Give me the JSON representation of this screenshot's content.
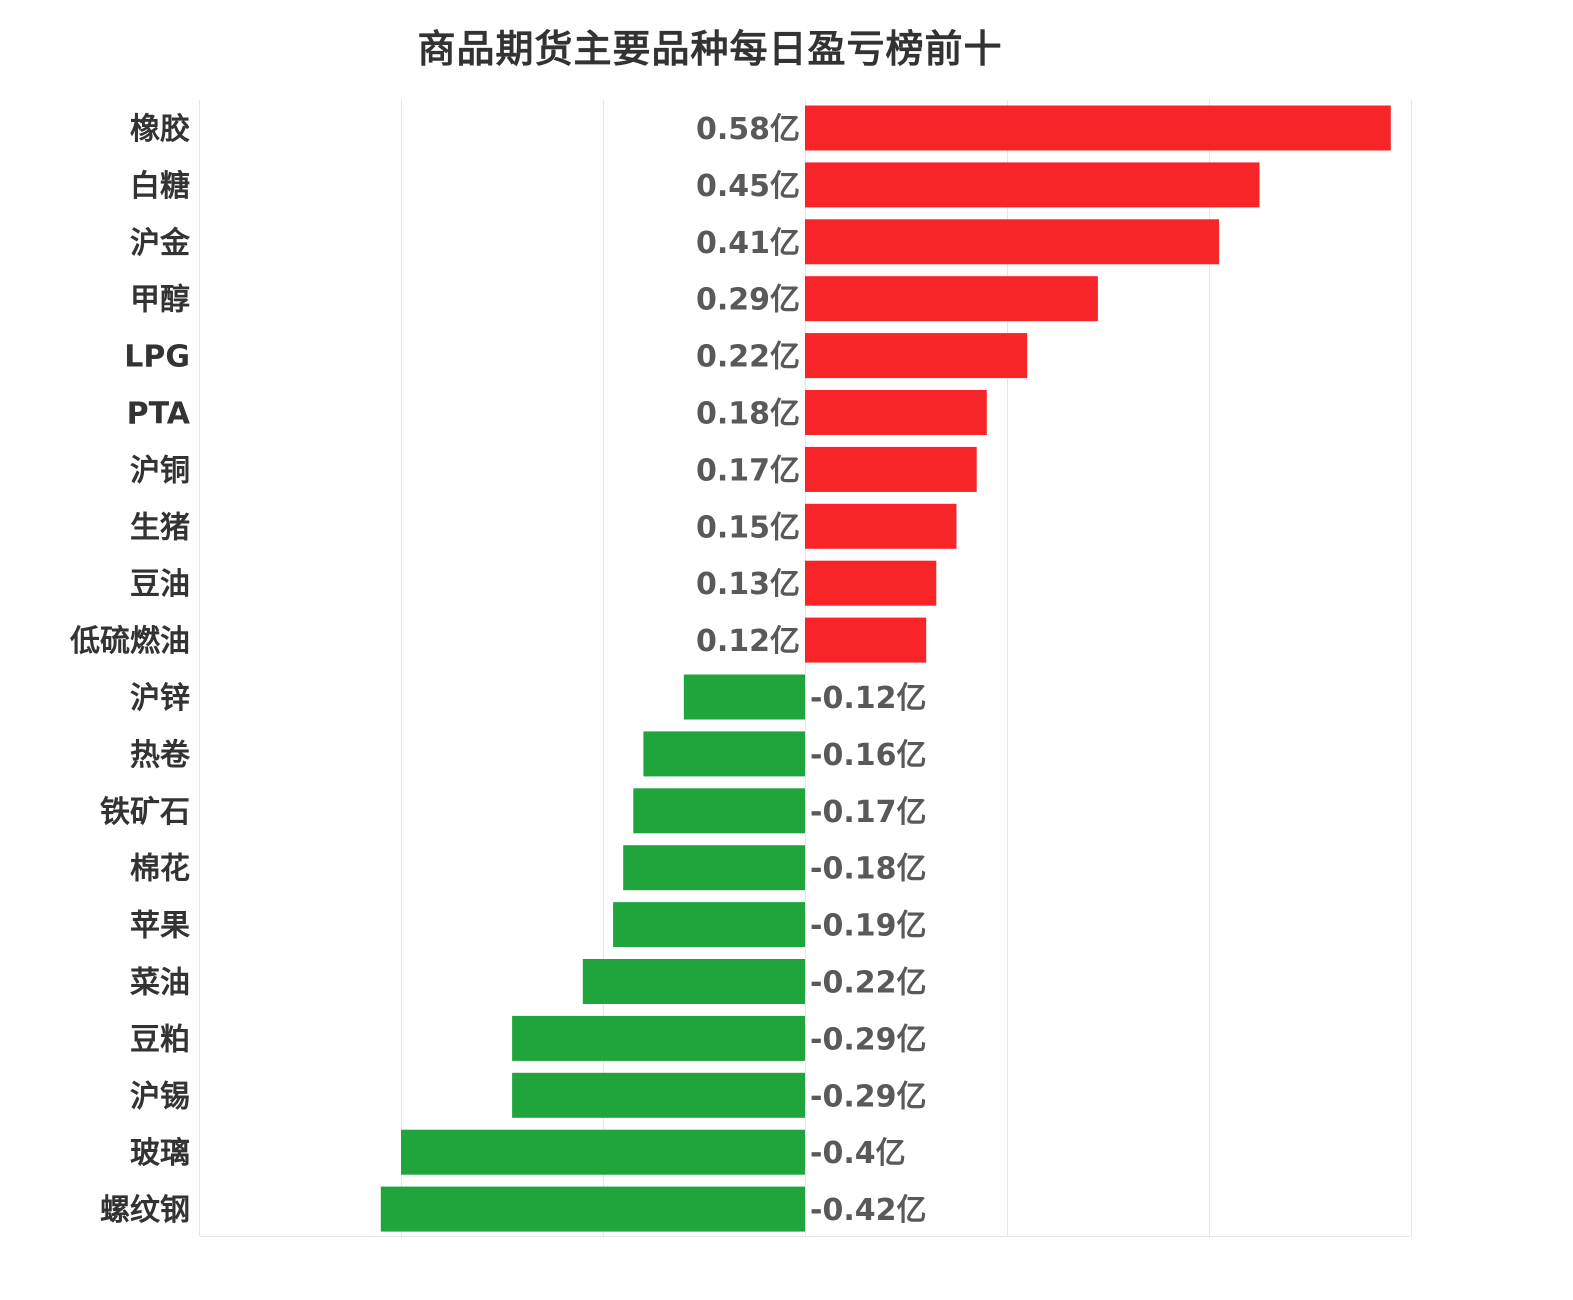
{
  "chart_data": {
    "type": "bar",
    "orientation": "horizontal",
    "title": "商品期货主要品种每日盈亏榜前十",
    "xlabel": "",
    "ylabel": "",
    "unit": "亿",
    "xlim": [
      -0.6,
      0.6
    ],
    "grid": true,
    "legend": "none",
    "categories": [
      "橡胶",
      "白糖",
      "沪金",
      "甲醇",
      "LPG",
      "PTA",
      "沪铜",
      "生猪",
      "豆油",
      "低硫燃油",
      "沪锌",
      "热卷",
      "铁矿石",
      "棉花",
      "苹果",
      "菜油",
      "豆粕",
      "沪锡",
      "玻璃",
      "螺纹钢"
    ],
    "values": [
      0.58,
      0.45,
      0.41,
      0.29,
      0.22,
      0.18,
      0.17,
      0.15,
      0.13,
      0.12,
      -0.12,
      -0.16,
      -0.17,
      -0.18,
      -0.19,
      -0.22,
      -0.29,
      -0.29,
      -0.4,
      -0.42
    ],
    "data_labels": [
      "0.58亿",
      "0.45亿",
      "0.41亿",
      "0.29亿",
      "0.22亿",
      "0.18亿",
      "0.17亿",
      "0.15亿",
      "0.13亿",
      "0.12亿",
      "-0.12亿",
      "-0.16亿",
      "-0.17亿",
      "-0.18亿",
      "-0.19亿",
      "-0.22亿",
      "-0.29亿",
      "-0.29亿",
      "-0.4亿",
      "-0.42亿"
    ],
    "colors": {
      "positive": "#f72528",
      "negative": "#20a53c",
      "grid": "#e6e6e6"
    }
  }
}
